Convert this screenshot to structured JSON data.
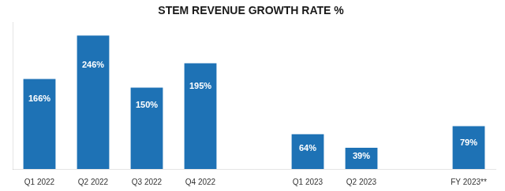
{
  "chart_data": {
    "type": "bar",
    "title": "STEM REVENUE GROWTH RATE %",
    "categories": [
      "Q1 2022",
      "Q2 2022",
      "Q3 2022",
      "Q4 2022",
      null,
      "Q1 2023",
      "Q2 2023",
      null,
      "FY 2023**"
    ],
    "values": [
      166,
      246,
      150,
      195,
      null,
      64,
      39,
      null,
      79
    ],
    "value_labels": [
      "166%",
      "246%",
      "150%",
      "195%",
      null,
      "64%",
      "39%",
      null,
      "79%"
    ],
    "color": "#1E72B5",
    "ylim": [
      0,
      270
    ],
    "grid": false,
    "data_labels": true,
    "tick_labels": "x"
  }
}
